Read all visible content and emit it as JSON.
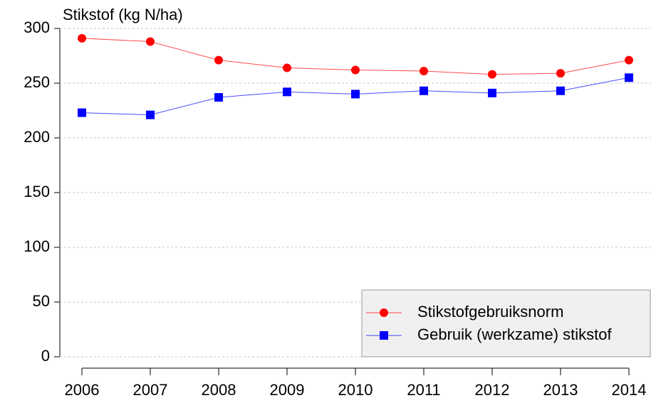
{
  "chart_data": {
    "type": "line",
    "ylabel": "Stikstof (kg N/ha)",
    "categories": [
      "2006",
      "2007",
      "2008",
      "2009",
      "2010",
      "2011",
      "2012",
      "2013",
      "2014"
    ],
    "series": [
      {
        "name": "Stikstofgebruiksnorm",
        "color": "#ff0000",
        "marker": "circle",
        "values": [
          291,
          288,
          271,
          264,
          262,
          261,
          258,
          259,
          271
        ]
      },
      {
        "name": "Gebruik (werkzame) stikstof",
        "color": "#0000ff",
        "marker": "square",
        "values": [
          223,
          221,
          237,
          242,
          240,
          243,
          241,
          243,
          255
        ]
      }
    ],
    "ylim": [
      0,
      300
    ],
    "yticks": [
      0,
      50,
      100,
      150,
      200,
      250,
      300
    ],
    "grid": true,
    "legend": "lower right"
  }
}
